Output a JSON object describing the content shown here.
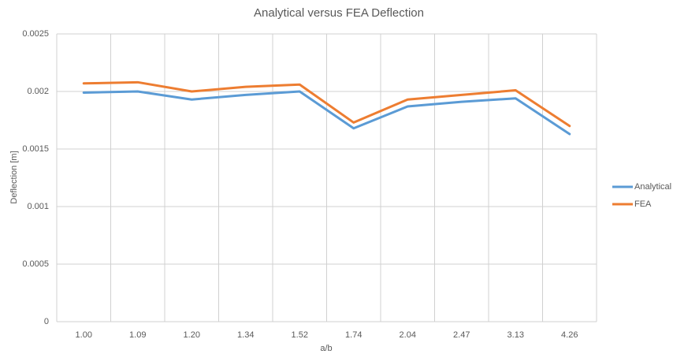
{
  "chart_data": {
    "type": "line",
    "title": "Analytical versus FEA Deflection",
    "x_label": "a/b",
    "y_label": "Deflection [m]",
    "categories": [
      "1.00",
      "1.09",
      "1.20",
      "1.34",
      "1.52",
      "1.74",
      "2.04",
      "2.47",
      "3.13",
      "4.26"
    ],
    "series": [
      {
        "name": "Analytical",
        "color": "#5b9bd5",
        "values": [
          0.00199,
          0.002,
          0.00193,
          0.00197,
          0.002,
          0.00168,
          0.00187,
          0.00191,
          0.00194,
          0.00163
        ]
      },
      {
        "name": "FEA",
        "color": "#ed7d31",
        "values": [
          0.00207,
          0.00208,
          0.002,
          0.00204,
          0.00206,
          0.00173,
          0.00193,
          0.00197,
          0.00201,
          0.0017
        ]
      }
    ],
    "ylim": [
      0,
      0.0025
    ],
    "yticks": [
      0,
      0.0005,
      0.001,
      0.0015,
      0.002,
      0.0025
    ],
    "grid": true,
    "legend": "right"
  }
}
